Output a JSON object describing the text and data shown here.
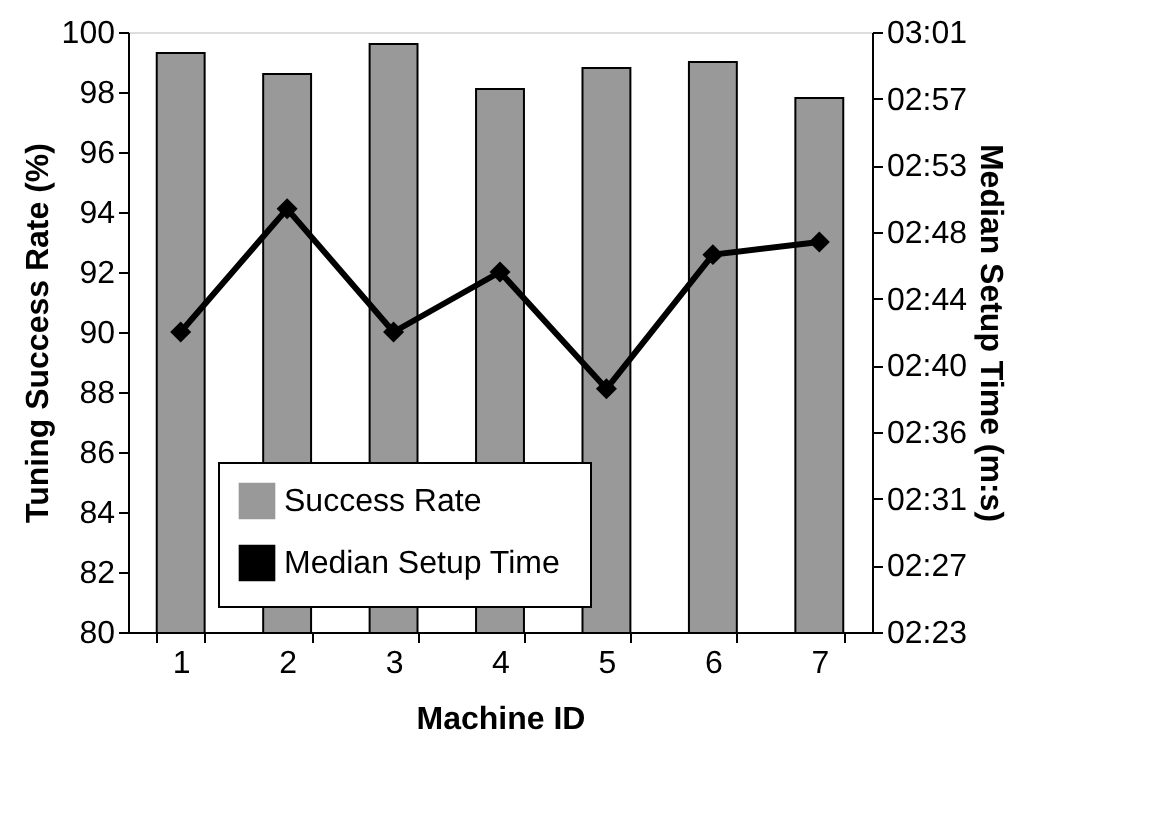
{
  "chart_data": {
    "type": "bar",
    "xlabel": "Machine ID",
    "ylabel": "Tuning Success Rate (%)",
    "y2label": "Median Setup Time (m:s)",
    "categories": [
      "1",
      "2",
      "3",
      "4",
      "5",
      "6",
      "7"
    ],
    "series": [
      {
        "name": "Success Rate",
        "color": "#999999",
        "values": [
          99.3,
          98.6,
          99.6,
          98.1,
          98.8,
          99.0,
          97.8
        ]
      },
      {
        "name": "Median Setup  Time",
        "type": "line",
        "axis": "y2",
        "color": "#000000",
        "marker": "diamond",
        "values": [
          162.0,
          169.8,
          162.0,
          165.8,
          158.4,
          166.9,
          167.7
        ]
      }
    ],
    "ylim": [
      80,
      100
    ],
    "yticks": [
      80,
      82,
      84,
      86,
      88,
      90,
      92,
      94,
      96,
      98,
      100
    ],
    "y2lim": [
      143,
      181
    ],
    "y2ticks": [
      {
        "value": 143,
        "label": "02:23"
      },
      {
        "value": 147.22,
        "label": "02:27"
      },
      {
        "value": 151.44,
        "label": "02:31"
      },
      {
        "value": 155.67,
        "label": "02:36"
      },
      {
        "value": 159.89,
        "label": "02:40"
      },
      {
        "value": 164.11,
        "label": "02:44"
      },
      {
        "value": 168.33,
        "label": "02:48"
      },
      {
        "value": 172.56,
        "label": "02:53"
      },
      {
        "value": 176.78,
        "label": "02:57"
      },
      {
        "value": 181,
        "label": "03:01"
      }
    ],
    "grid": false,
    "legend": "bottom"
  }
}
